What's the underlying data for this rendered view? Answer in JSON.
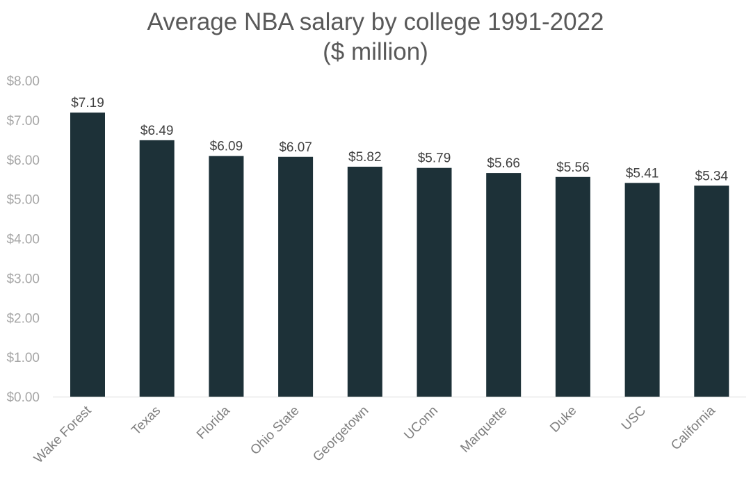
{
  "chart_data": {
    "type": "bar",
    "title_line1": "Average NBA salary by college 1991-2022",
    "title_line2": "($ million)",
    "xlabel": "",
    "ylabel": "",
    "ylim": [
      0,
      8
    ],
    "y_ticks": [
      "$0.00",
      "$1.00",
      "$2.00",
      "$3.00",
      "$4.00",
      "$5.00",
      "$6.00",
      "$7.00",
      "$8.00"
    ],
    "categories": [
      "Wake Forest",
      "Texas",
      "Florida",
      "Ohio State",
      "Georgetown",
      "UConn",
      "Marquette",
      "Duke",
      "USC",
      "California"
    ],
    "values": [
      7.19,
      6.49,
      6.09,
      6.07,
      5.82,
      5.79,
      5.66,
      5.56,
      5.41,
      5.34
    ],
    "data_labels": [
      "$7.19",
      "$6.49",
      "$6.09",
      "$6.07",
      "$5.82",
      "$5.79",
      "$5.66",
      "$5.56",
      "$5.41",
      "$5.34"
    ],
    "grid": false,
    "legend": "none",
    "bar_color": "#1d3138"
  }
}
